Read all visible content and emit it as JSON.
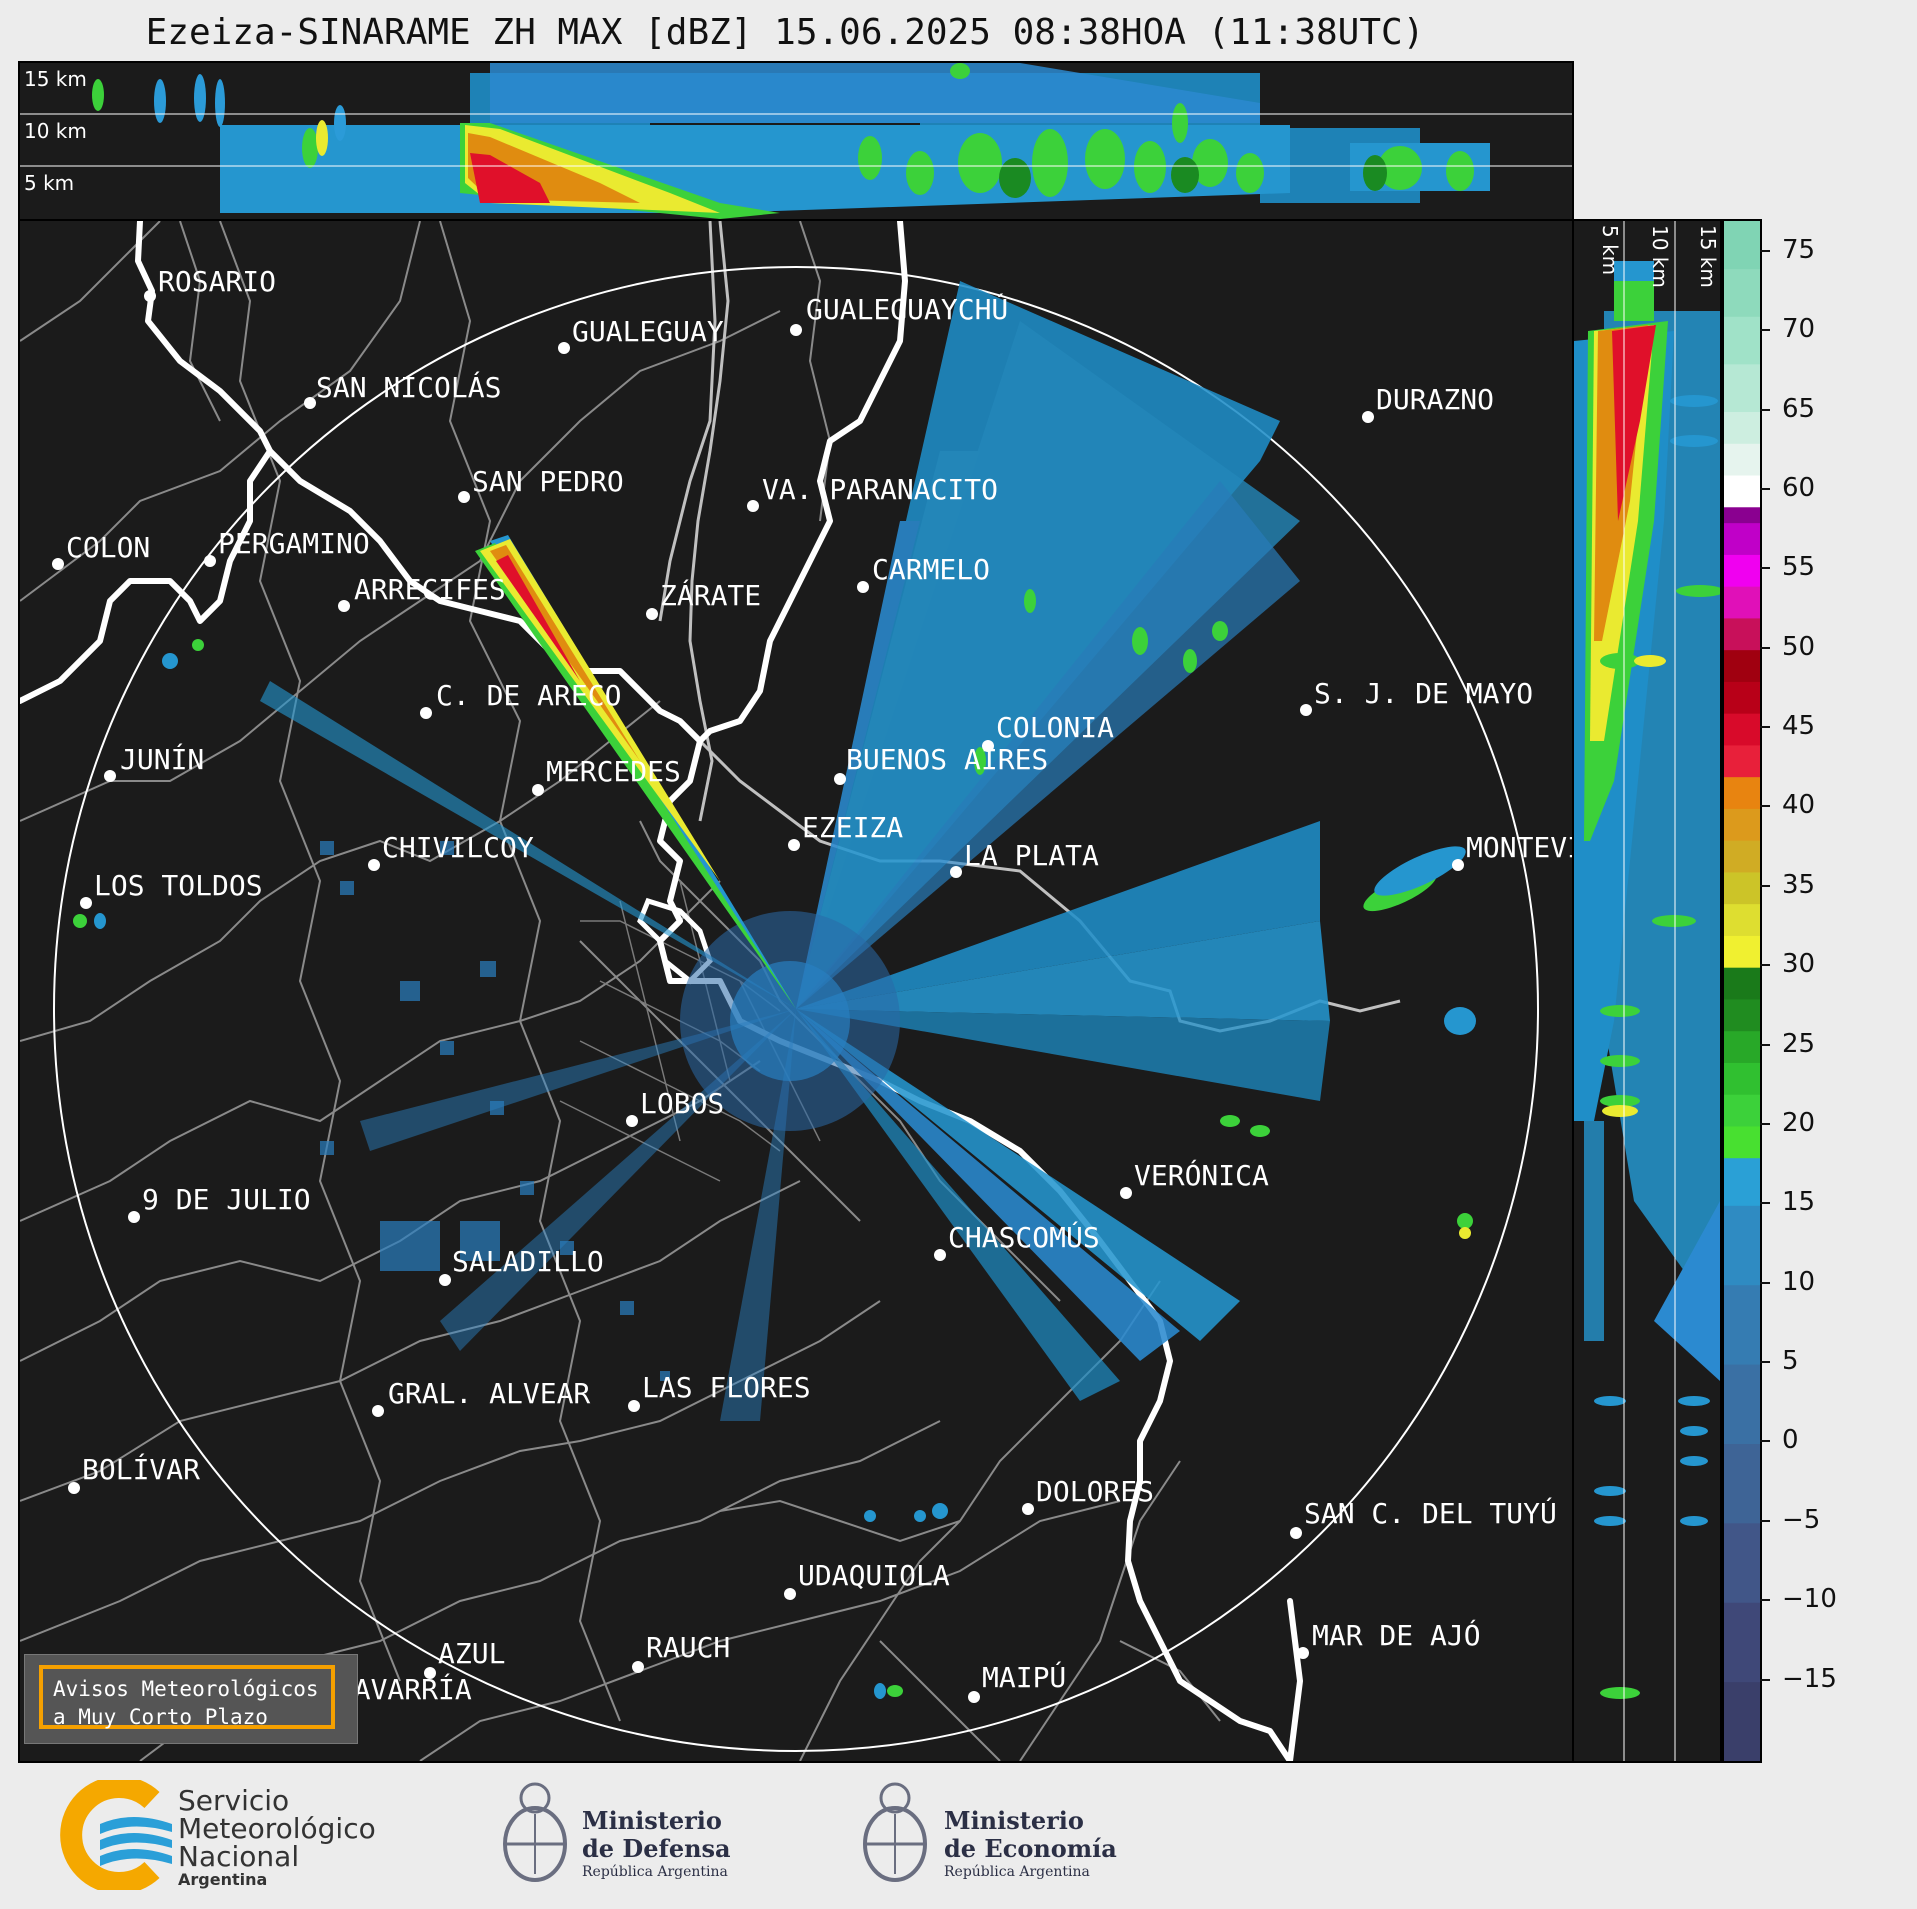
{
  "title": "Ezeiza-SINARAME ZH MAX [dBZ] 15.06.2025 08:38HOA (11:38UTC)",
  "top_panel": {
    "altitude_labels": [
      "15 km",
      "10 km",
      "5 km"
    ]
  },
  "side_panel": {
    "altitude_labels": [
      "5 km",
      "10 km",
      "15 km"
    ]
  },
  "colorbar": {
    "unit": "dBZ",
    "ticks": [
      "75",
      "70",
      "65",
      "60",
      "55",
      "50",
      "45",
      "40",
      "35",
      "30",
      "25",
      "20",
      "15",
      "10",
      "5",
      "0",
      "−5",
      "−10",
      "−15"
    ],
    "range": [
      -20,
      77
    ]
  },
  "cities": [
    {
      "name": "ROSARIO"
    },
    {
      "name": "GUALEGUAYCHÚ"
    },
    {
      "name": "GUALEGUAY"
    },
    {
      "name": "SAN NICOLÁS"
    },
    {
      "name": "DURAZNO"
    },
    {
      "name": "SAN PEDRO"
    },
    {
      "name": "VA. PARANACITO"
    },
    {
      "name": "COLON"
    },
    {
      "name": "PERGAMINO"
    },
    {
      "name": "CARMELO"
    },
    {
      "name": "ARRECIFES"
    },
    {
      "name": "ZÁRATE"
    },
    {
      "name": "S. J. DE MAYO"
    },
    {
      "name": "C. DE ARECO"
    },
    {
      "name": "COLONIA"
    },
    {
      "name": "JUNÍN"
    },
    {
      "name": "BUENOS AIRES"
    },
    {
      "name": "MERCEDES"
    },
    {
      "name": "EZEIZA"
    },
    {
      "name": "MONTEVIDEO"
    },
    {
      "name": "CHIVILCOY"
    },
    {
      "name": "LA PLATA"
    },
    {
      "name": "LOS TOLDOS"
    },
    {
      "name": "LOBOS"
    },
    {
      "name": "VERÓNICA"
    },
    {
      "name": "9 DE JULIO"
    },
    {
      "name": "CHASCOMÚS"
    },
    {
      "name": "SALADILLO"
    },
    {
      "name": "GRAL. ALVEAR"
    },
    {
      "name": "LAS FLORES"
    },
    {
      "name": "BOLÍVAR"
    },
    {
      "name": "DOLORES"
    },
    {
      "name": "SAN C. DEL TUYÚ"
    },
    {
      "name": "UDAQUIOLA"
    },
    {
      "name": "MAR DE AJÓ"
    },
    {
      "name": "RAUCH"
    },
    {
      "name": "AZUL"
    },
    {
      "name": "OLAVARRÍA"
    },
    {
      "name": "MAIPÚ"
    }
  ],
  "avisos": {
    "line1": "Avisos Meteorológicos",
    "line2": "a Muy Corto Plazo"
  },
  "logos": {
    "smn_line1": "Servicio",
    "smn_line2": "Meteorológico",
    "smn_line3": "Nacional",
    "smn_line4": "Argentina",
    "defensa_line1": "Ministerio",
    "defensa_line2": "de Defensa",
    "defensa_line3": "República Argentina",
    "economia_line1": "Ministerio",
    "economia_line2": "de Economía",
    "economia_line3": "República Argentina"
  },
  "colors": {
    "background": "#1b1b1b",
    "page": "#ececec",
    "smn_orange": "#f5a800",
    "smn_blue": "#2a9fd8"
  }
}
